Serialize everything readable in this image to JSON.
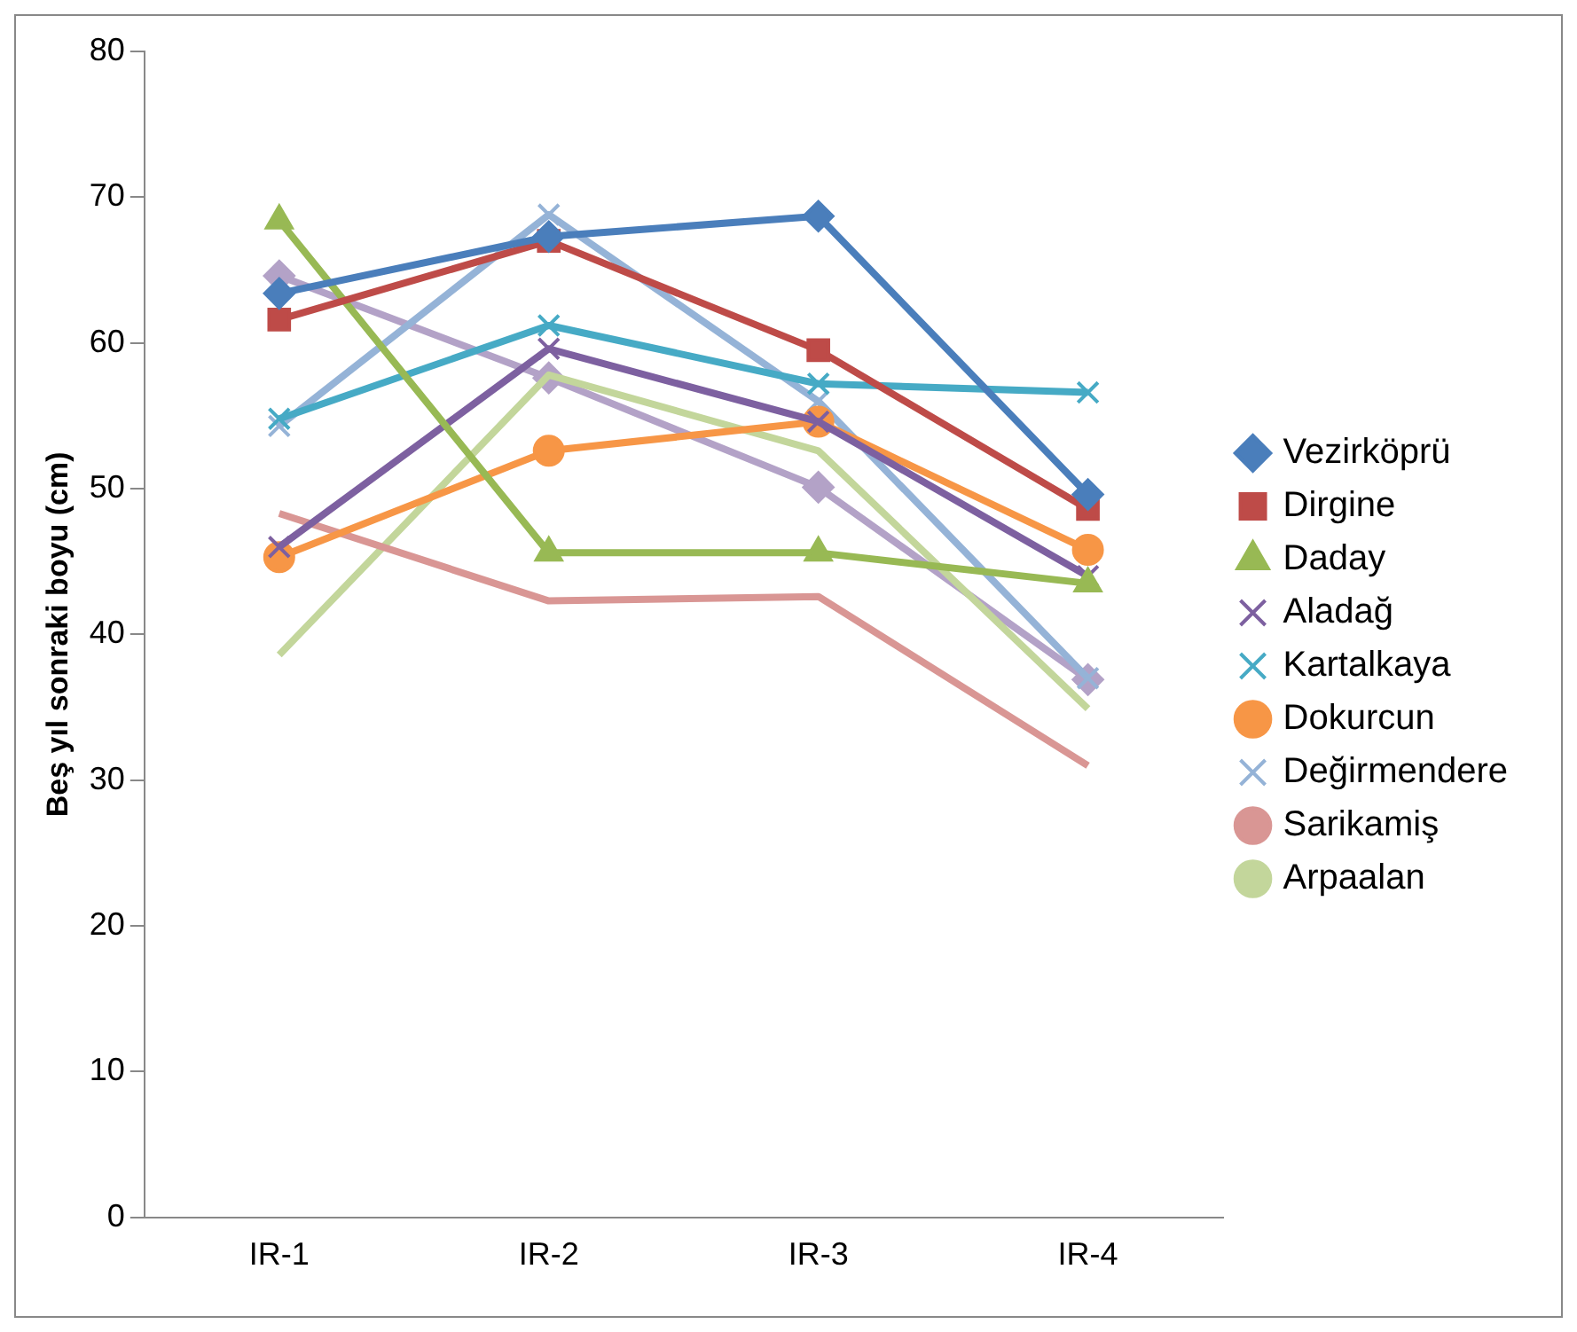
{
  "chart_data": {
    "type": "line",
    "ylabel": "Beş yıl sonraki boyu (cm)",
    "categories": [
      "IR-1",
      "IR-2",
      "IR-3",
      "IR-4"
    ],
    "ylim": [
      0,
      80
    ],
    "yticks": [
      0,
      10,
      20,
      30,
      40,
      50,
      60,
      70,
      80
    ],
    "grid": false,
    "legend": "right",
    "series": [
      {
        "name": "Vezirköprü",
        "color": "#4a7ebb",
        "marker": "diamond",
        "values": [
          63.4,
          67.3,
          68.7,
          49.6
        ]
      },
      {
        "name": "Dirgine",
        "color": "#be4b48",
        "marker": "square",
        "values": [
          61.6,
          67.0,
          59.5,
          48.6
        ]
      },
      {
        "name": "Daday",
        "color": "#98b954",
        "marker": "triangle",
        "values": [
          68.4,
          45.6,
          45.6,
          43.5
        ]
      },
      {
        "name": "Aladağ",
        "color": "#7d60a0",
        "marker": "cross",
        "values": [
          46.0,
          59.6,
          54.6,
          44.0
        ]
      },
      {
        "name": "Kartalkaya",
        "color": "#46aac5",
        "marker": "cross",
        "values": [
          54.8,
          61.2,
          57.2,
          56.6
        ]
      },
      {
        "name": "Dokurcun",
        "color": "#f79646",
        "marker": "circle",
        "values": [
          45.3,
          52.6,
          54.6,
          45.8
        ]
      },
      {
        "name": "Değirmendere",
        "color": "#95b3d7",
        "marker": "cross",
        "values": [
          54.3,
          68.8,
          56.0,
          37.0
        ]
      },
      {
        "name": "Sarikamiş",
        "color": "#d99694",
        "marker": "none",
        "values": [
          48.3,
          42.3,
          42.6,
          31.0
        ]
      },
      {
        "name": "Arpaalan",
        "color": "#c3d69b",
        "marker": "none",
        "values": [
          38.6,
          57.8,
          52.6,
          34.9
        ]
      },
      {
        "color": "#b3a2c7",
        "marker": "diamond",
        "values": [
          64.6,
          57.6,
          50.1,
          36.9
        ]
      }
    ]
  }
}
